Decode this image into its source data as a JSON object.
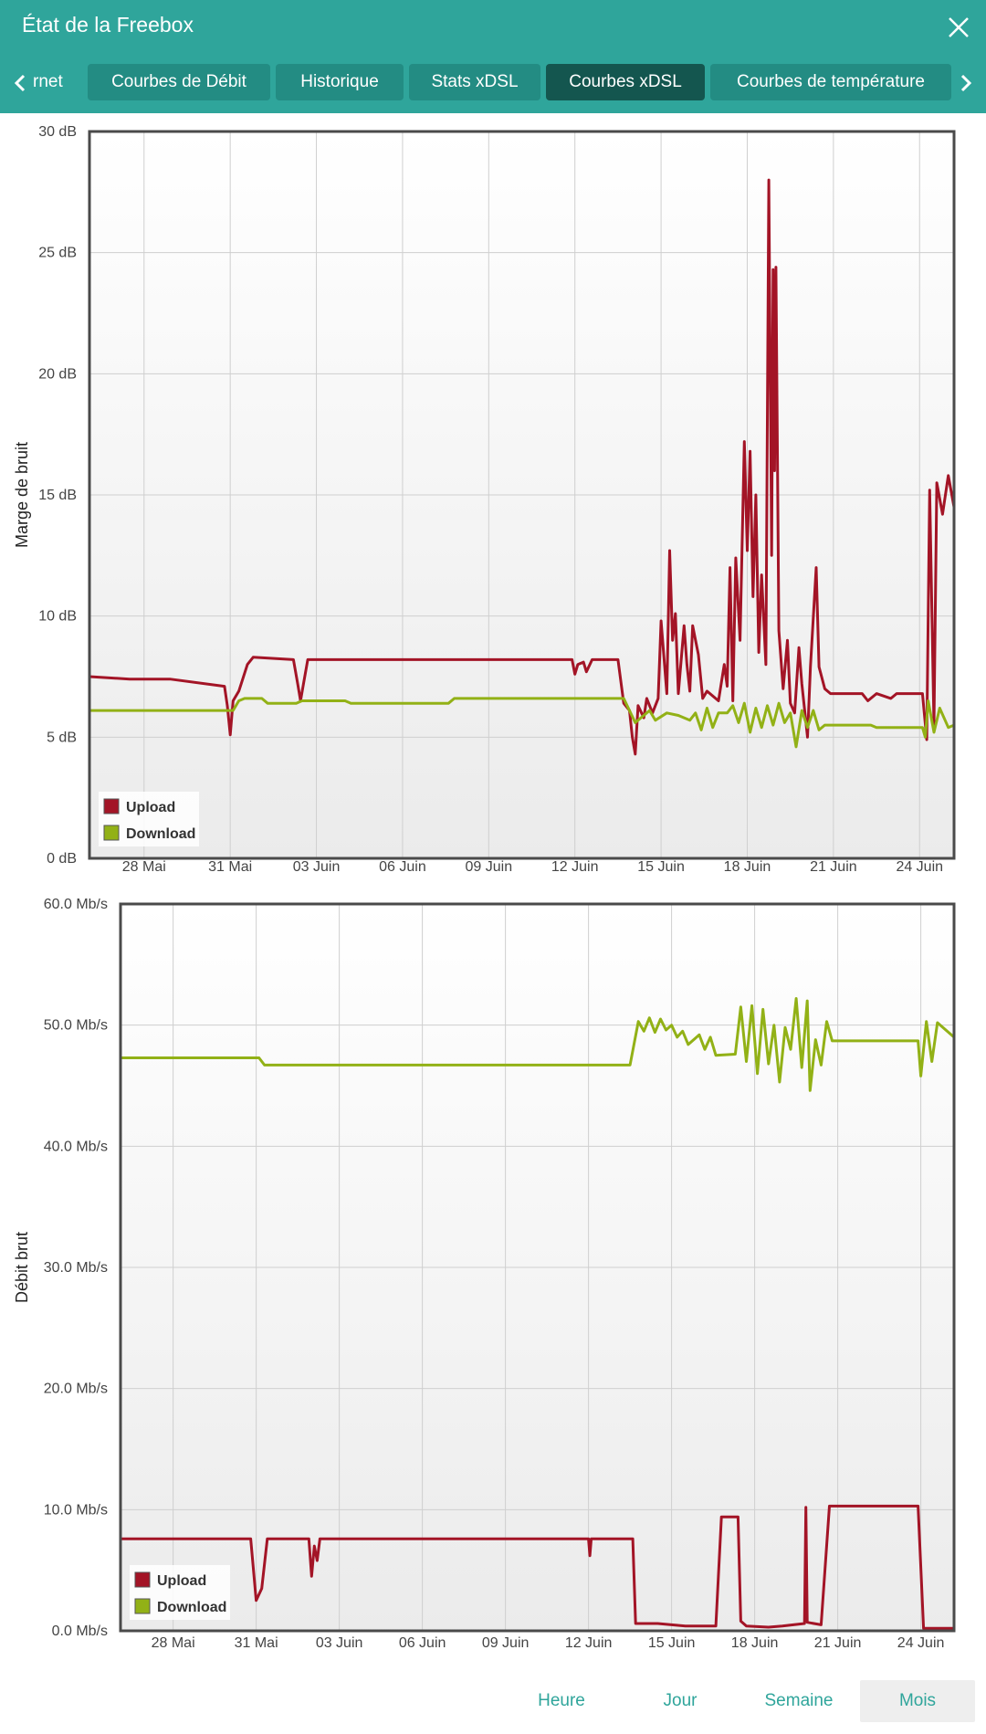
{
  "app": {
    "title": "État de la Freebox"
  },
  "tabs": {
    "partial_label": "rnet",
    "items": [
      {
        "label": "Courbes de Débit"
      },
      {
        "label": "Historique"
      },
      {
        "label": "Stats xDSL"
      },
      {
        "label": "Courbes xDSL",
        "active": true
      },
      {
        "label": "Courbes de température"
      }
    ]
  },
  "periods": [
    {
      "label": "Heure"
    },
    {
      "label": "Jour"
    },
    {
      "label": "Semaine"
    },
    {
      "label": "Mois",
      "active": true
    }
  ],
  "colors": {
    "header": "#2fa59b",
    "tab": "#238c83",
    "tab_active": "#14564f",
    "upload": "#a31426",
    "download": "#92b116"
  },
  "chart_data": [
    {
      "type": "line",
      "ylabel": "Marge de bruit",
      "ylim": [
        0,
        30
      ],
      "yticks": [
        "0 dB",
        "5 dB",
        "10 dB",
        "15 dB",
        "20 dB",
        "25 dB",
        "30 dB"
      ],
      "xlim": [
        26.1,
        56.2
      ],
      "xticks": [
        {
          "x": 28,
          "label": "28 Mai"
        },
        {
          "x": 31,
          "label": "31 Mai"
        },
        {
          "x": 34,
          "label": "03 Juin"
        },
        {
          "x": 37,
          "label": "06 Juin"
        },
        {
          "x": 40,
          "label": "09 Juin"
        },
        {
          "x": 43,
          "label": "12 Juin"
        },
        {
          "x": 46,
          "label": "15 Juin"
        },
        {
          "x": 49,
          "label": "18 Juin"
        },
        {
          "x": 52,
          "label": "21 Juin"
        },
        {
          "x": 55,
          "label": "24 Juin"
        }
      ],
      "legend": [
        "Upload",
        "Download"
      ],
      "legend_position": "bottom-left",
      "series": [
        {
          "name": "Upload",
          "color": "#a31426",
          "points": [
            [
              26.1,
              7.5
            ],
            [
              27.5,
              7.4
            ],
            [
              28.9,
              7.4
            ],
            [
              30.8,
              7.1
            ],
            [
              30.9,
              6.3
            ],
            [
              31.0,
              5.1
            ],
            [
              31.1,
              6.5
            ],
            [
              31.3,
              6.9
            ],
            [
              31.6,
              8.0
            ],
            [
              31.8,
              8.3
            ],
            [
              33.2,
              8.2
            ],
            [
              33.35,
              7.2
            ],
            [
              33.45,
              6.5
            ],
            [
              33.55,
              7.2
            ],
            [
              33.7,
              8.2
            ],
            [
              42.9,
              8.2
            ],
            [
              43.0,
              7.6
            ],
            [
              43.1,
              8.0
            ],
            [
              43.3,
              8.1
            ],
            [
              43.4,
              7.7
            ],
            [
              43.6,
              8.2
            ],
            [
              44.5,
              8.2
            ],
            [
              44.7,
              6.4
            ],
            [
              44.9,
              6.1
            ],
            [
              45.0,
              5.0
            ],
            [
              45.1,
              4.3
            ],
            [
              45.2,
              6.3
            ],
            [
              45.4,
              5.8
            ],
            [
              45.5,
              6.6
            ],
            [
              45.7,
              6.0
            ],
            [
              45.9,
              6.6
            ],
            [
              46.0,
              9.8
            ],
            [
              46.2,
              6.8
            ],
            [
              46.3,
              12.7
            ],
            [
              46.4,
              9.0
            ],
            [
              46.5,
              10.1
            ],
            [
              46.6,
              6.8
            ],
            [
              46.8,
              9.6
            ],
            [
              46.9,
              8.0
            ],
            [
              47.0,
              6.9
            ],
            [
              47.1,
              9.6
            ],
            [
              47.3,
              8.4
            ],
            [
              47.45,
              6.6
            ],
            [
              47.6,
              6.9
            ],
            [
              48.0,
              6.5
            ],
            [
              48.2,
              8.0
            ],
            [
              48.3,
              7.1
            ],
            [
              48.4,
              12.0
            ],
            [
              48.5,
              6.5
            ],
            [
              48.6,
              12.4
            ],
            [
              48.75,
              9.0
            ],
            [
              48.9,
              17.2
            ],
            [
              49.0,
              12.7
            ],
            [
              49.1,
              16.8
            ],
            [
              49.2,
              10.8
            ],
            [
              49.3,
              15.0
            ],
            [
              49.4,
              8.5
            ],
            [
              49.5,
              11.7
            ],
            [
              49.65,
              8.0
            ],
            [
              49.75,
              28.0
            ],
            [
              49.85,
              12.5
            ],
            [
              49.9,
              24.3
            ],
            [
              49.95,
              16.0
            ],
            [
              50.0,
              24.4
            ],
            [
              50.1,
              9.4
            ],
            [
              50.25,
              7.0
            ],
            [
              50.4,
              9.0
            ],
            [
              50.5,
              6.4
            ],
            [
              50.65,
              6.0
            ],
            [
              50.8,
              8.7
            ],
            [
              50.9,
              7.2
            ],
            [
              51.1,
              5.0
            ],
            [
              51.2,
              7.9
            ],
            [
              51.4,
              12.0
            ],
            [
              51.5,
              7.9
            ],
            [
              51.7,
              7.0
            ],
            [
              51.9,
              6.8
            ],
            [
              53.0,
              6.8
            ],
            [
              53.2,
              6.5
            ],
            [
              53.5,
              6.8
            ],
            [
              54.0,
              6.6
            ],
            [
              54.2,
              6.8
            ],
            [
              55.1,
              6.8
            ],
            [
              55.25,
              4.9
            ],
            [
              55.35,
              15.2
            ],
            [
              55.5,
              5.5
            ],
            [
              55.6,
              15.5
            ],
            [
              55.8,
              14.2
            ],
            [
              56.0,
              15.8
            ],
            [
              56.2,
              14.5
            ]
          ]
        },
        {
          "name": "Download",
          "color": "#92b116",
          "points": [
            [
              26.1,
              6.1
            ],
            [
              28.8,
              6.1
            ],
            [
              31.1,
              6.1
            ],
            [
              31.3,
              6.5
            ],
            [
              31.5,
              6.6
            ],
            [
              32.1,
              6.6
            ],
            [
              32.3,
              6.4
            ],
            [
              33.3,
              6.4
            ],
            [
              33.5,
              6.5
            ],
            [
              35.0,
              6.5
            ],
            [
              35.2,
              6.4
            ],
            [
              38.6,
              6.4
            ],
            [
              38.8,
              6.6
            ],
            [
              41.0,
              6.6
            ],
            [
              44.7,
              6.6
            ],
            [
              44.9,
              6.1
            ],
            [
              45.1,
              5.6
            ],
            [
              45.4,
              5.9
            ],
            [
              45.6,
              6.1
            ],
            [
              45.8,
              5.7
            ],
            [
              46.2,
              6.0
            ],
            [
              46.6,
              5.9
            ],
            [
              47.0,
              5.7
            ],
            [
              47.2,
              6.0
            ],
            [
              47.4,
              5.3
            ],
            [
              47.6,
              6.2
            ],
            [
              47.8,
              5.4
            ],
            [
              48.0,
              6.0
            ],
            [
              48.3,
              6.0
            ],
            [
              48.5,
              6.3
            ],
            [
              48.7,
              5.6
            ],
            [
              48.9,
              6.4
            ],
            [
              49.1,
              5.2
            ],
            [
              49.3,
              6.2
            ],
            [
              49.5,
              5.4
            ],
            [
              49.7,
              6.3
            ],
            [
              49.9,
              5.5
            ],
            [
              50.1,
              6.4
            ],
            [
              50.3,
              5.6
            ],
            [
              50.5,
              6.0
            ],
            [
              50.7,
              4.6
            ],
            [
              50.9,
              6.1
            ],
            [
              51.1,
              5.4
            ],
            [
              51.3,
              6.1
            ],
            [
              51.5,
              5.3
            ],
            [
              51.7,
              5.5
            ],
            [
              53.3,
              5.5
            ],
            [
              53.5,
              5.4
            ],
            [
              55.1,
              5.4
            ],
            [
              55.2,
              5.0
            ],
            [
              55.3,
              6.5
            ],
            [
              55.5,
              5.2
            ],
            [
              55.7,
              6.2
            ],
            [
              56.0,
              5.4
            ],
            [
              56.2,
              5.5
            ]
          ]
        }
      ]
    },
    {
      "type": "line",
      "ylabel": "Débit brut",
      "ylim": [
        0,
        60
      ],
      "yticks": [
        "0.0 Mb/s",
        "10.0 Mb/s",
        "20.0 Mb/s",
        "30.0 Mb/s",
        "40.0 Mb/s",
        "50.0 Mb/s",
        "60.0 Mb/s"
      ],
      "xlim": [
        26.1,
        56.2
      ],
      "xticks": [
        {
          "x": 28,
          "label": "28 Mai"
        },
        {
          "x": 31,
          "label": "31 Mai"
        },
        {
          "x": 34,
          "label": "03 Juin"
        },
        {
          "x": 37,
          "label": "06 Juin"
        },
        {
          "x": 40,
          "label": "09 Juin"
        },
        {
          "x": 43,
          "label": "12 Juin"
        },
        {
          "x": 46,
          "label": "15 Juin"
        },
        {
          "x": 49,
          "label": "18 Juin"
        },
        {
          "x": 52,
          "label": "21 Juin"
        },
        {
          "x": 55,
          "label": "24 Juin"
        }
      ],
      "legend": [
        "Upload",
        "Download"
      ],
      "legend_position": "bottom-left",
      "series": [
        {
          "name": "Upload",
          "color": "#a31426",
          "points": [
            [
              26.1,
              7.6
            ],
            [
              30.8,
              7.6
            ],
            [
              31.0,
              2.5
            ],
            [
              31.2,
              3.5
            ],
            [
              31.4,
              7.6
            ],
            [
              32.9,
              7.6
            ],
            [
              33.0,
              4.5
            ],
            [
              33.1,
              7.0
            ],
            [
              33.2,
              5.8
            ],
            [
              33.3,
              7.6
            ],
            [
              43.0,
              7.6
            ],
            [
              43.05,
              6.2
            ],
            [
              43.1,
              7.6
            ],
            [
              44.6,
              7.6
            ],
            [
              44.7,
              0.6
            ],
            [
              45.5,
              0.6
            ],
            [
              46.0,
              0.5
            ],
            [
              46.5,
              0.4
            ],
            [
              47.6,
              0.4
            ],
            [
              47.8,
              9.4
            ],
            [
              48.4,
              9.4
            ],
            [
              48.5,
              0.8
            ],
            [
              48.7,
              0.4
            ],
            [
              49.5,
              0.3
            ],
            [
              50.0,
              0.4
            ],
            [
              50.8,
              0.6
            ],
            [
              50.85,
              10.2
            ],
            [
              50.9,
              0.7
            ],
            [
              51.4,
              0.5
            ],
            [
              51.7,
              10.3
            ],
            [
              54.9,
              10.3
            ],
            [
              55.1,
              0.2
            ],
            [
              56.2,
              0.2
            ]
          ]
        },
        {
          "name": "Download",
          "color": "#92b116",
          "points": [
            [
              26.1,
              47.3
            ],
            [
              31.1,
              47.3
            ],
            [
              31.3,
              46.7
            ],
            [
              44.5,
              46.7
            ],
            [
              44.8,
              50.3
            ],
            [
              45.0,
              49.5
            ],
            [
              45.2,
              50.6
            ],
            [
              45.4,
              49.4
            ],
            [
              45.6,
              50.5
            ],
            [
              45.8,
              49.6
            ],
            [
              46.0,
              50.0
            ],
            [
              46.2,
              49.0
            ],
            [
              46.4,
              49.5
            ],
            [
              46.6,
              48.4
            ],
            [
              47.0,
              49.2
            ],
            [
              47.2,
              48.0
            ],
            [
              47.4,
              49.0
            ],
            [
              47.6,
              47.5
            ],
            [
              48.3,
              47.6
            ],
            [
              48.5,
              51.5
            ],
            [
              48.7,
              47.0
            ],
            [
              48.9,
              51.6
            ],
            [
              49.1,
              46.0
            ],
            [
              49.3,
              51.3
            ],
            [
              49.5,
              46.8
            ],
            [
              49.7,
              50.0
            ],
            [
              49.9,
              45.3
            ],
            [
              50.1,
              49.8
            ],
            [
              50.3,
              48.0
            ],
            [
              50.5,
              52.2
            ],
            [
              50.7,
              46.5
            ],
            [
              50.9,
              52.0
            ],
            [
              51.0,
              44.6
            ],
            [
              51.2,
              48.8
            ],
            [
              51.4,
              46.7
            ],
            [
              51.6,
              50.3
            ],
            [
              51.8,
              48.7
            ],
            [
              54.9,
              48.7
            ],
            [
              55.0,
              45.8
            ],
            [
              55.2,
              50.3
            ],
            [
              55.4,
              47.0
            ],
            [
              55.6,
              50.2
            ],
            [
              56.2,
              49.0
            ]
          ]
        }
      ]
    }
  ]
}
